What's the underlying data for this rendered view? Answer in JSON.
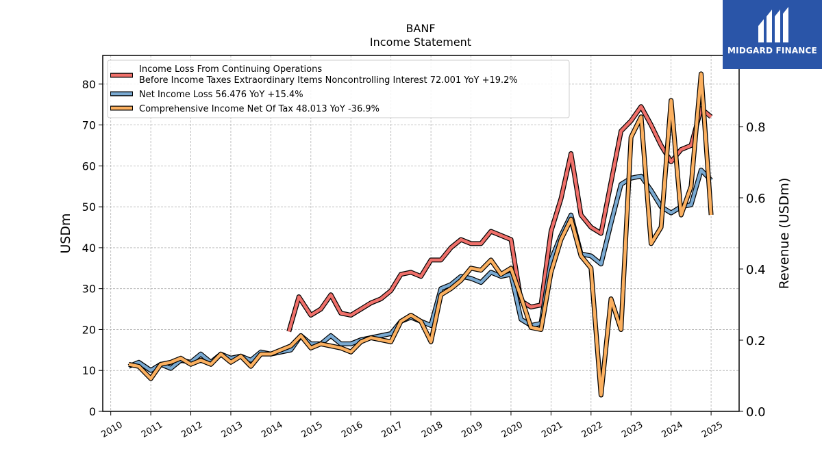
{
  "chart_data": {
    "type": "line",
    "title": "BANF",
    "subtitle": "Income Statement",
    "ylabel": "USDm",
    "y2label": "Revenue (USDm)",
    "ylim": [
      0,
      87
    ],
    "y2lim": [
      0,
      1.0
    ],
    "yticks": [
      0,
      10,
      20,
      30,
      40,
      50,
      60,
      70,
      80
    ],
    "y2ticks": [
      "0.0",
      "0.2",
      "0.4",
      "0.6",
      "0.8"
    ],
    "xlim": [
      2009.8,
      2025.7
    ],
    "xticks": [
      "2010",
      "2011",
      "2012",
      "2013",
      "2014",
      "2015",
      "2016",
      "2017",
      "2018",
      "2019",
      "2020",
      "2021",
      "2022",
      "2023",
      "2024",
      "2025"
    ],
    "grid": true,
    "legend_position": "top-left",
    "series": [
      {
        "name": "Income Loss From Continuing Operations Before Income Taxes Extraordinary Items Noncontrolling Interest",
        "legend_lines": [
          "Income Loss From Continuing Operations",
          "Before Income Taxes Extraordinary Items Noncontrolling Interest  72.001 YoY +19.2%"
        ],
        "color": "#f0706a",
        "x": [
          2014.45,
          2014.7,
          2015.0,
          2015.25,
          2015.5,
          2015.75,
          2016.0,
          2016.25,
          2016.5,
          2016.75,
          2017.0,
          2017.25,
          2017.5,
          2017.75,
          2018.0,
          2018.25,
          2018.5,
          2018.75,
          2019.0,
          2019.25,
          2019.5,
          2019.75,
          2020.0,
          2020.25,
          2020.5,
          2020.75,
          2021.0,
          2021.25,
          2021.5,
          2021.75,
          2022.0,
          2022.25,
          2022.5,
          2022.75,
          2023.0,
          2023.25,
          2023.5,
          2023.75,
          2024.0,
          2024.25,
          2024.5,
          2024.75,
          2025.0
        ],
        "values": [
          19.5,
          28.0,
          23.5,
          25.0,
          28.5,
          24.0,
          23.5,
          25.0,
          26.5,
          27.5,
          29.5,
          33.5,
          34.0,
          33.0,
          37.0,
          37.0,
          40.0,
          42.0,
          41.0,
          41.0,
          44.0,
          43.0,
          42.0,
          27.0,
          25.5,
          26.0,
          44.0,
          52.0,
          63.0,
          48.0,
          45.0,
          43.5,
          56.0,
          68.5,
          71.0,
          74.5,
          70.0,
          65.0,
          61.0,
          64.0,
          65.0,
          74.0,
          72.0
        ]
      },
      {
        "name": "Net Income Loss",
        "legend_lines": [
          "Net Income Loss  56.476 YoY +15.4%"
        ],
        "color": "#7aaad2",
        "x": [
          2010.45,
          2010.7,
          2011.0,
          2011.25,
          2011.5,
          2011.75,
          2012.0,
          2012.25,
          2012.5,
          2012.75,
          2013.0,
          2013.25,
          2013.5,
          2013.75,
          2014.0,
          2014.25,
          2014.5,
          2014.75,
          2015.0,
          2015.25,
          2015.5,
          2015.75,
          2016.0,
          2016.25,
          2016.5,
          2016.75,
          2017.0,
          2017.25,
          2017.5,
          2017.75,
          2018.0,
          2018.25,
          2018.5,
          2018.75,
          2019.0,
          2019.25,
          2019.5,
          2019.75,
          2020.0,
          2020.25,
          2020.5,
          2020.75,
          2021.0,
          2021.25,
          2021.5,
          2021.75,
          2022.0,
          2022.25,
          2022.5,
          2022.75,
          2023.0,
          2023.25,
          2023.5,
          2023.75,
          2024.0,
          2024.25,
          2024.5,
          2024.75,
          2025.0
        ],
        "values": [
          11.0,
          12.0,
          10.0,
          11.5,
          10.5,
          12.5,
          12.0,
          14.0,
          12.0,
          14.0,
          13.0,
          13.5,
          12.5,
          14.5,
          14.0,
          14.5,
          15.0,
          18.5,
          16.5,
          16.5,
          18.5,
          16.5,
          16.5,
          17.5,
          18.0,
          18.5,
          19.0,
          22.0,
          23.0,
          22.0,
          21.0,
          30.0,
          31.0,
          33.0,
          32.5,
          31.5,
          34.0,
          33.0,
          33.5,
          22.5,
          21.0,
          21.5,
          37.0,
          43.0,
          48.0,
          38.5,
          38.0,
          36.0,
          46.0,
          55.5,
          57.0,
          57.5,
          54.0,
          50.0,
          48.5,
          50.0,
          50.5,
          59.0,
          56.476
        ]
      },
      {
        "name": "Comprehensive Income Net Of Tax",
        "legend_lines": [
          "Comprehensive Income Net Of Tax  48.013 YoY -36.9%"
        ],
        "color": "#fbb060",
        "x": [
          2010.45,
          2010.7,
          2011.0,
          2011.25,
          2011.5,
          2011.75,
          2012.0,
          2012.25,
          2012.5,
          2012.75,
          2013.0,
          2013.25,
          2013.5,
          2013.75,
          2014.0,
          2014.25,
          2014.5,
          2014.75,
          2015.0,
          2015.25,
          2015.5,
          2015.75,
          2016.0,
          2016.25,
          2016.5,
          2016.75,
          2017.0,
          2017.25,
          2017.5,
          2017.75,
          2018.0,
          2018.25,
          2018.5,
          2018.75,
          2019.0,
          2019.25,
          2019.5,
          2019.75,
          2020.0,
          2020.25,
          2020.5,
          2020.75,
          2021.0,
          2021.25,
          2021.5,
          2021.75,
          2022.0,
          2022.25,
          2022.5,
          2022.75,
          2023.0,
          2023.25,
          2023.5,
          2023.75,
          2024.0,
          2024.25,
          2024.5,
          2024.75,
          2025.0
        ],
        "values": [
          11.5,
          11.0,
          8.0,
          11.5,
          12.0,
          13.0,
          11.5,
          12.5,
          11.5,
          14.0,
          12.0,
          13.5,
          11.0,
          14.0,
          14.0,
          15.0,
          16.0,
          18.5,
          15.5,
          16.5,
          16.0,
          15.5,
          14.5,
          17.0,
          18.0,
          17.5,
          17.0,
          22.0,
          23.5,
          22.0,
          17.0,
          28.5,
          30.0,
          32.0,
          35.0,
          34.5,
          37.0,
          33.5,
          35.0,
          28.0,
          20.5,
          20.0,
          34.0,
          42.0,
          47.0,
          38.0,
          35.0,
          4.0,
          27.5,
          20.0,
          67.0,
          72.0,
          41.0,
          45.0,
          76.0,
          48.0,
          55.0,
          82.5,
          48.013
        ]
      }
    ]
  },
  "logo": {
    "text": "MIDGARD FINANCE"
  }
}
